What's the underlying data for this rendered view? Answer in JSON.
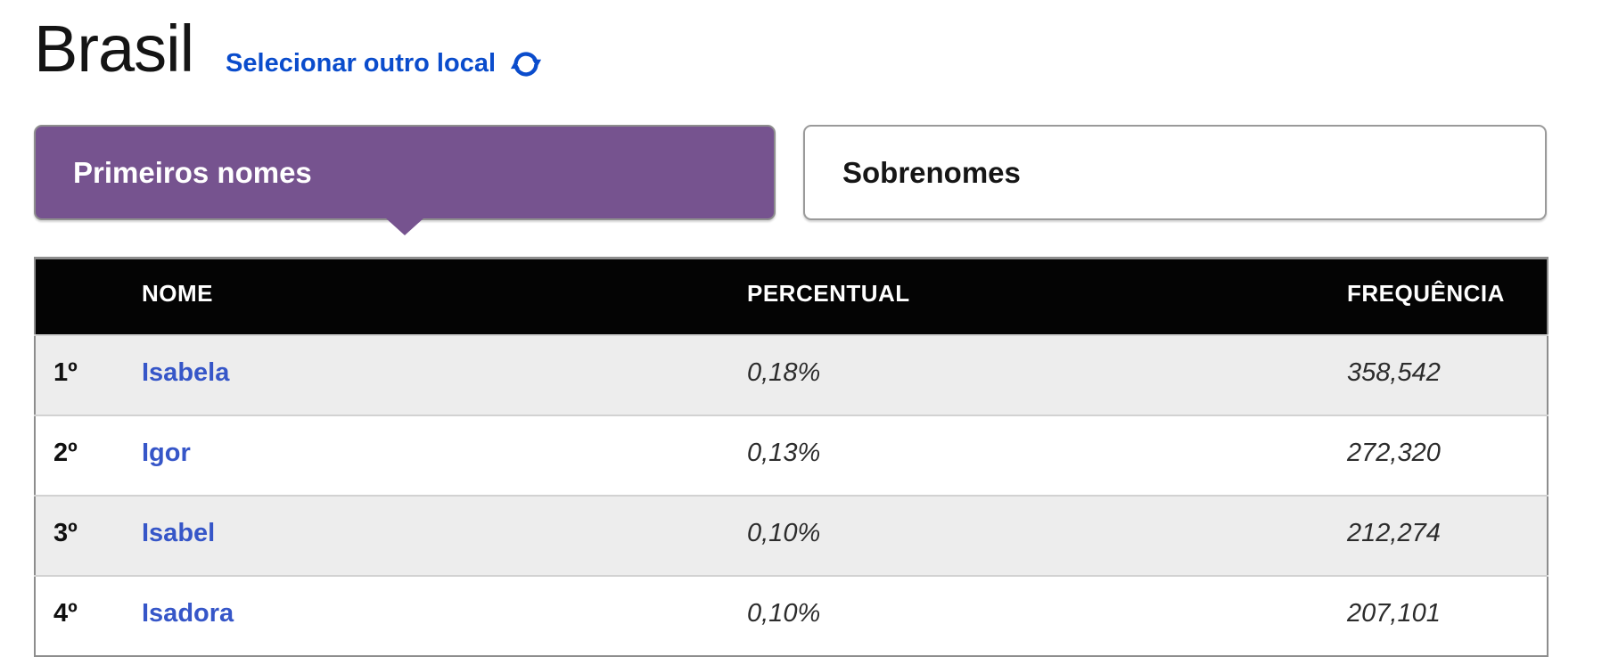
{
  "header": {
    "location_title": "Brasil",
    "change_location_label": "Selecionar outro local"
  },
  "tabs": [
    {
      "label": "Primeiros nomes",
      "active": true
    },
    {
      "label": "Sobrenomes",
      "active": false
    }
  ],
  "table": {
    "columns": [
      "NOME",
      "PERCENTUAL",
      "FREQUÊNCIA"
    ],
    "rows": [
      {
        "rank": "1º",
        "name": "Isabela",
        "percentual": "0,18%",
        "frequencia": "358,542"
      },
      {
        "rank": "2º",
        "name": "Igor",
        "percentual": "0,13%",
        "frequencia": "272,320"
      },
      {
        "rank": "3º",
        "name": "Isabel",
        "percentual": "0,10%",
        "frequencia": "212,274"
      },
      {
        "rank": "4º",
        "name": "Isadora",
        "percentual": "0,10%",
        "frequencia": "207,101"
      }
    ]
  },
  "icons": {
    "refresh": "circular-arrows-refresh"
  },
  "colors": {
    "purple": "#76538f",
    "link_blue": "#0a4ccc",
    "name_link": "#3656c8",
    "row_alt": "#ededed",
    "row_border": "#d2d2d2",
    "table_border": "#8d8d8d",
    "tab_border": "#9a9a9a"
  }
}
